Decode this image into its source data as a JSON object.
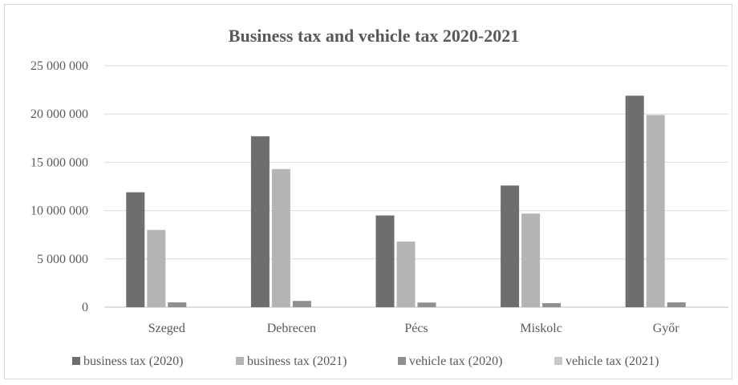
{
  "chart_data": {
    "type": "bar",
    "title": "Business tax and vehicle tax 2020-2021",
    "xlabel": "",
    "ylabel": "",
    "categories": [
      "Szeged",
      "Debrecen",
      "Pécs",
      "Miskolc",
      "Győr"
    ],
    "series": [
      {
        "name": "business tax (2020)",
        "color": "#6e6e6e",
        "values": [
          11900000,
          17700000,
          9500000,
          12600000,
          21900000
        ]
      },
      {
        "name": "business tax (2021)",
        "color": "#b4b4b4",
        "values": [
          8000000,
          14300000,
          6800000,
          9700000,
          19900000
        ]
      },
      {
        "name": "vehicle tax (2020)",
        "color": "#8f8f8f",
        "values": [
          500000,
          650000,
          480000,
          420000,
          500000
        ]
      },
      {
        "name": "vehicle tax (2021)",
        "color": "#c7c7c7",
        "values": [
          0,
          0,
          0,
          0,
          0
        ]
      }
    ],
    "ylim": [
      0,
      25000000
    ],
    "yticks": [
      0,
      5000000,
      10000000,
      15000000,
      20000000,
      25000000
    ],
    "ytick_labels": [
      "0",
      "5 000 000",
      "10 000 000",
      "15 000 000",
      "20 000 000",
      "25 000 000"
    ],
    "grid": "horizontal",
    "legend_position": "bottom"
  }
}
